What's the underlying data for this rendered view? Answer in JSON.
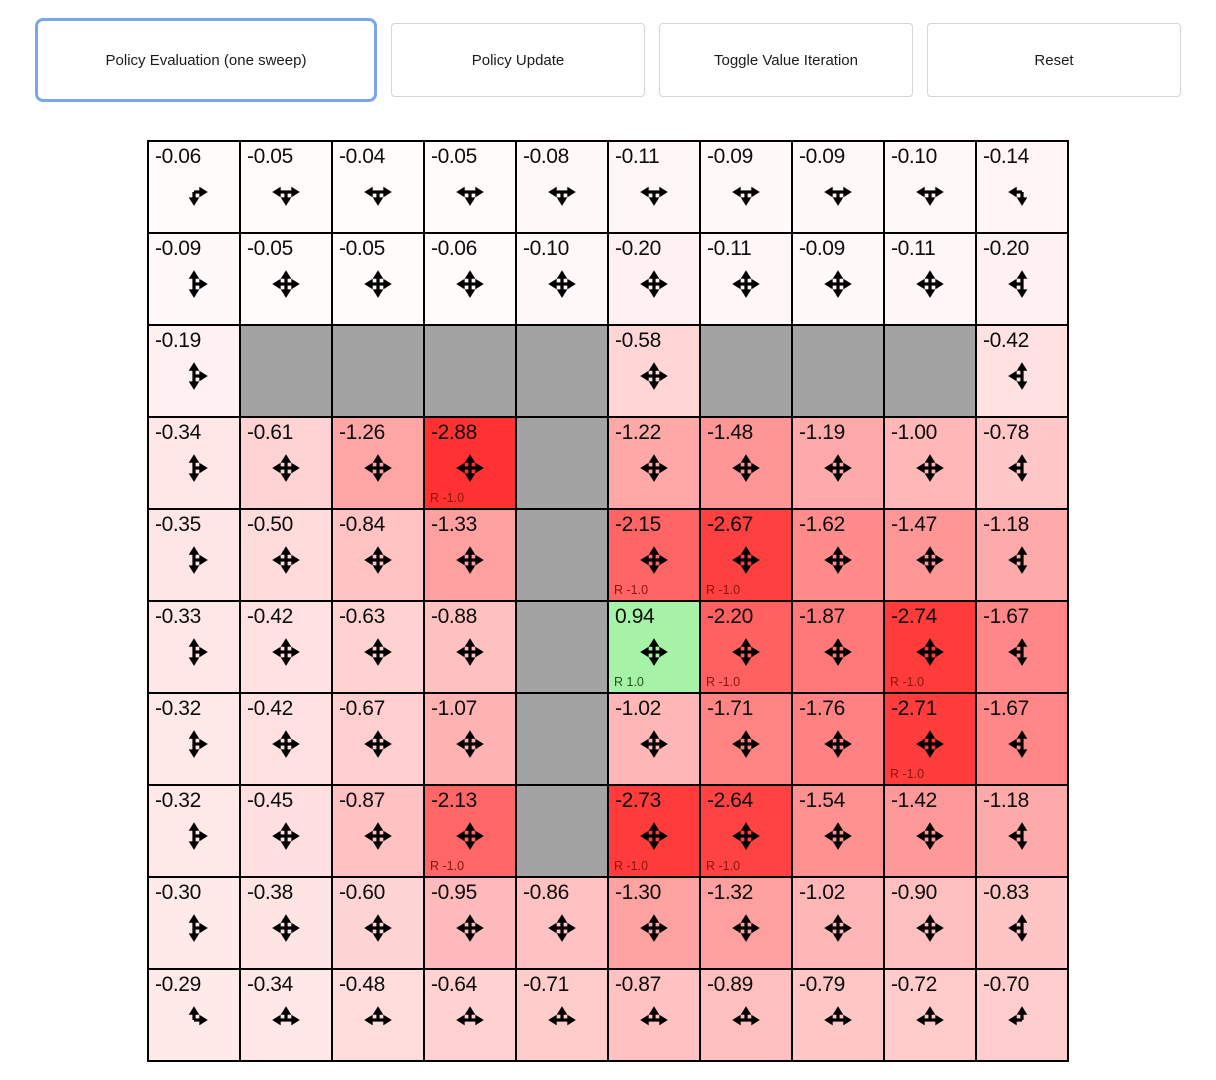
{
  "toolbar": {
    "buttons": [
      {
        "label": "Policy Evaluation (one sweep)",
        "active": true
      },
      {
        "label": "Policy Update",
        "active": false
      },
      {
        "label": "Toggle Value Iteration",
        "active": false
      },
      {
        "label": "Reset",
        "active": false
      }
    ]
  },
  "colors": {
    "active_button_border": "#7aa7e8",
    "wall": "#a3a3a3",
    "negative_base": "#ff2828",
    "positive_cell": "#a6f2a6",
    "reward_negative_text": "#8c150a",
    "reward_positive_text": "#23531f",
    "grid_line": "#000000"
  },
  "grid": {
    "rows": 10,
    "cols": 10,
    "value_scale_min": -3.0,
    "cells": [
      [
        {
          "value": "-0.06",
          "arrows": "rd"
        },
        {
          "value": "-0.05",
          "arrows": "lrd"
        },
        {
          "value": "-0.04",
          "arrows": "lrd"
        },
        {
          "value": "-0.05",
          "arrows": "lrd"
        },
        {
          "value": "-0.08",
          "arrows": "lrd"
        },
        {
          "value": "-0.11",
          "arrows": "lrd"
        },
        {
          "value": "-0.09",
          "arrows": "lrd"
        },
        {
          "value": "-0.09",
          "arrows": "lrd"
        },
        {
          "value": "-0.10",
          "arrows": "lrd"
        },
        {
          "value": "-0.14",
          "arrows": "ld"
        }
      ],
      [
        {
          "value": "-0.09",
          "arrows": "urd"
        },
        {
          "value": "-0.05",
          "arrows": "ulrd"
        },
        {
          "value": "-0.05",
          "arrows": "ulrd"
        },
        {
          "value": "-0.06",
          "arrows": "ulrd"
        },
        {
          "value": "-0.10",
          "arrows": "ulrd"
        },
        {
          "value": "-0.20",
          "arrows": "ulrd"
        },
        {
          "value": "-0.11",
          "arrows": "ulrd"
        },
        {
          "value": "-0.09",
          "arrows": "ulrd"
        },
        {
          "value": "-0.11",
          "arrows": "ulrd"
        },
        {
          "value": "-0.20",
          "arrows": "uld"
        }
      ],
      [
        {
          "value": "-0.19",
          "arrows": "urd"
        },
        {
          "wall": true
        },
        {
          "wall": true
        },
        {
          "wall": true
        },
        {
          "wall": true
        },
        {
          "value": "-0.58",
          "arrows": "ulrd"
        },
        {
          "wall": true
        },
        {
          "wall": true
        },
        {
          "wall": true
        },
        {
          "value": "-0.42",
          "arrows": "uld"
        }
      ],
      [
        {
          "value": "-0.34",
          "arrows": "urd"
        },
        {
          "value": "-0.61",
          "arrows": "ulrd"
        },
        {
          "value": "-1.26",
          "arrows": "ulrd"
        },
        {
          "value": "-2.88",
          "arrows": "ulrd",
          "reward": "R -1.0"
        },
        {
          "wall": true
        },
        {
          "value": "-1.22",
          "arrows": "ulrd"
        },
        {
          "value": "-1.48",
          "arrows": "ulrd"
        },
        {
          "value": "-1.19",
          "arrows": "ulrd"
        },
        {
          "value": "-1.00",
          "arrows": "ulrd"
        },
        {
          "value": "-0.78",
          "arrows": "uld"
        }
      ],
      [
        {
          "value": "-0.35",
          "arrows": "urd"
        },
        {
          "value": "-0.50",
          "arrows": "ulrd"
        },
        {
          "value": "-0.84",
          "arrows": "ulrd"
        },
        {
          "value": "-1.33",
          "arrows": "ulrd"
        },
        {
          "wall": true
        },
        {
          "value": "-2.15",
          "arrows": "ulrd",
          "reward": "R -1.0"
        },
        {
          "value": "-2.67",
          "arrows": "ulrd",
          "reward": "R -1.0"
        },
        {
          "value": "-1.62",
          "arrows": "ulrd"
        },
        {
          "value": "-1.47",
          "arrows": "ulrd"
        },
        {
          "value": "-1.18",
          "arrows": "uld"
        }
      ],
      [
        {
          "value": "-0.33",
          "arrows": "urd"
        },
        {
          "value": "-0.42",
          "arrows": "ulrd"
        },
        {
          "value": "-0.63",
          "arrows": "ulrd"
        },
        {
          "value": "-0.88",
          "arrows": "ulrd"
        },
        {
          "wall": true
        },
        {
          "value": "0.94",
          "arrows": "ulrd",
          "reward": "R 1.0",
          "positive": true
        },
        {
          "value": "-2.20",
          "arrows": "ulrd",
          "reward": "R -1.0"
        },
        {
          "value": "-1.87",
          "arrows": "ulrd"
        },
        {
          "value": "-2.74",
          "arrows": "ulrd",
          "reward": "R -1.0"
        },
        {
          "value": "-1.67",
          "arrows": "uld"
        }
      ],
      [
        {
          "value": "-0.32",
          "arrows": "urd"
        },
        {
          "value": "-0.42",
          "arrows": "ulrd"
        },
        {
          "value": "-0.67",
          "arrows": "ulrd"
        },
        {
          "value": "-1.07",
          "arrows": "ulrd"
        },
        {
          "wall": true
        },
        {
          "value": "-1.02",
          "arrows": "ulrd"
        },
        {
          "value": "-1.71",
          "arrows": "ulrd"
        },
        {
          "value": "-1.76",
          "arrows": "ulrd"
        },
        {
          "value": "-2.71",
          "arrows": "ulrd",
          "reward": "R -1.0"
        },
        {
          "value": "-1.67",
          "arrows": "uld"
        }
      ],
      [
        {
          "value": "-0.32",
          "arrows": "urd"
        },
        {
          "value": "-0.45",
          "arrows": "ulrd"
        },
        {
          "value": "-0.87",
          "arrows": "ulrd"
        },
        {
          "value": "-2.13",
          "arrows": "ulrd",
          "reward": "R -1.0"
        },
        {
          "wall": true
        },
        {
          "value": "-2.73",
          "arrows": "ulrd",
          "reward": "R -1.0"
        },
        {
          "value": "-2.64",
          "arrows": "ulrd",
          "reward": "R -1.0"
        },
        {
          "value": "-1.54",
          "arrows": "ulrd"
        },
        {
          "value": "-1.42",
          "arrows": "ulrd"
        },
        {
          "value": "-1.18",
          "arrows": "uld"
        }
      ],
      [
        {
          "value": "-0.30",
          "arrows": "urd"
        },
        {
          "value": "-0.38",
          "arrows": "ulrd"
        },
        {
          "value": "-0.60",
          "arrows": "ulrd"
        },
        {
          "value": "-0.95",
          "arrows": "ulrd"
        },
        {
          "value": "-0.86",
          "arrows": "ulrd"
        },
        {
          "value": "-1.30",
          "arrows": "ulrd"
        },
        {
          "value": "-1.32",
          "arrows": "ulrd"
        },
        {
          "value": "-1.02",
          "arrows": "ulrd"
        },
        {
          "value": "-0.90",
          "arrows": "ulrd"
        },
        {
          "value": "-0.83",
          "arrows": "uld"
        }
      ],
      [
        {
          "value": "-0.29",
          "arrows": "ur"
        },
        {
          "value": "-0.34",
          "arrows": "ulr"
        },
        {
          "value": "-0.48",
          "arrows": "ulr"
        },
        {
          "value": "-0.64",
          "arrows": "ulr"
        },
        {
          "value": "-0.71",
          "arrows": "ulr"
        },
        {
          "value": "-0.87",
          "arrows": "ulr"
        },
        {
          "value": "-0.89",
          "arrows": "ulr"
        },
        {
          "value": "-0.79",
          "arrows": "ulr"
        },
        {
          "value": "-0.72",
          "arrows": "ulr"
        },
        {
          "value": "-0.70",
          "arrows": "ul"
        }
      ]
    ]
  }
}
